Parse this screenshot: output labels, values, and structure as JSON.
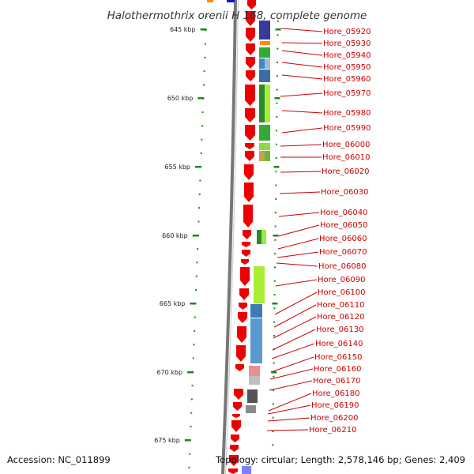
{
  "title": "Halothermothrix orenii H 168, complete genome",
  "footer": {
    "accession": "Accession: NC_011899",
    "summary": "Topology: circular; Length: 2,578,146 bp; Genes: 2,409"
  },
  "colors": {
    "cds": "#ee0000",
    "backbone": "#888888",
    "tick": "#1a8a1a",
    "label": "#cc0000",
    "leader": "#cc0000"
  },
  "scale": {
    "labels": [
      "645 kbp",
      "650 kbp",
      "655 kbp",
      "660 kbp",
      "665 kbp",
      "670 kbp",
      "675 kbp"
    ]
  },
  "genes": [
    "Hore_05920",
    "Hore_05930",
    "Hore_05940",
    "Hore_05950",
    "Hore_05960",
    "Hore_05970",
    "Hore_05980",
    "Hore_05990",
    "Hore_06000",
    "Hore_06010",
    "Hore_06020",
    "Hore_06030",
    "Hore_06040",
    "Hore_06050",
    "Hore_06060",
    "Hore_06070",
    "Hore_06080",
    "Hore_06090",
    "Hore_06100",
    "Hore_06110",
    "Hore_06120",
    "Hore_06130",
    "Hore_06140",
    "Hore_06150",
    "Hore_06160",
    "Hore_06170",
    "Hore_06180",
    "Hore_06190",
    "Hore_06200",
    "Hore_06210"
  ]
}
